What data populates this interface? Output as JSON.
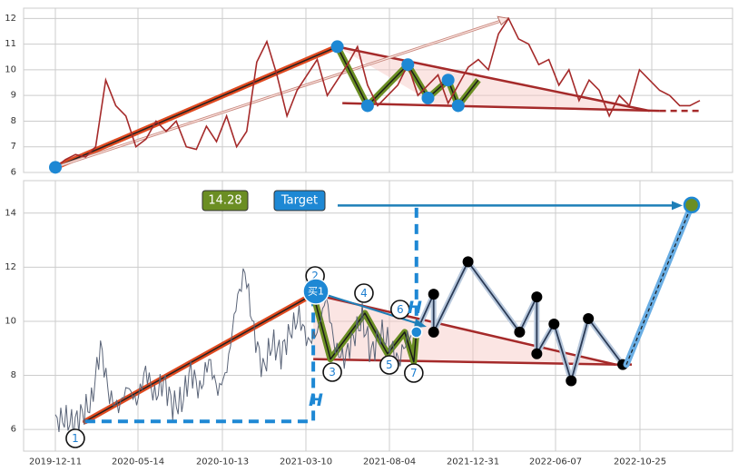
{
  "chart_data": [
    {
      "type": "line",
      "title": "",
      "xlabel": "",
      "ylabel": "",
      "ylim": [
        6,
        12.4
      ],
      "y_ticks": [
        "6",
        "7",
        "8",
        "9",
        "10",
        "11",
        "12"
      ],
      "grid": true,
      "series": [
        {
          "color": "#a52a2a",
          "values": [
            6.2,
            6.5,
            6.7,
            6.6,
            7.0,
            9.6,
            8.6,
            8.2,
            7.0,
            7.3,
            8.0,
            7.6,
            8.0,
            7.0,
            6.9,
            7.8,
            7.2,
            8.2,
            7.0,
            7.6,
            10.3,
            11.1,
            9.8,
            8.2,
            9.2,
            9.8,
            10.4,
            9.0,
            9.6,
            10.2,
            10.9,
            9.4,
            8.6,
            9.0,
            9.4,
            10.2,
            9.0,
            9.4,
            9.8,
            8.7,
            9.4,
            10.1,
            10.4,
            10.0,
            11.4,
            12.0,
            11.2,
            11.0,
            10.2,
            10.4,
            9.4,
            10.0,
            8.8,
            9.6,
            9.2,
            8.2,
            9.0,
            8.6,
            10.0,
            9.6,
            9.2,
            9.0,
            8.6,
            8.6,
            8.8
          ]
        }
      ],
      "markers": [
        {
          "label": "",
          "x": 0,
          "y": 6.2
        },
        {
          "label": "",
          "x": 28,
          "y": 10.9
        },
        {
          "label": "",
          "x": 31,
          "y": 8.6
        },
        {
          "label": "",
          "x": 35,
          "y": 10.2
        },
        {
          "label": "",
          "x": 37,
          "y": 8.9
        },
        {
          "label": "",
          "x": 39,
          "y": 9.6
        },
        {
          "label": "",
          "x": 40,
          "y": 8.6
        }
      ]
    },
    {
      "type": "line",
      "title": "",
      "xlabel": "",
      "ylabel": "",
      "ylim": [
        5.2,
        15.2
      ],
      "y_ticks": [
        "6",
        "8",
        "10",
        "12",
        "14"
      ],
      "x_ticks": [
        "2019-12-11",
        "2020-05-14",
        "2020-10-13",
        "2021-03-10",
        "2021-08-04",
        "2021-12-31",
        "2022-06-07",
        "2022-10-25"
      ],
      "grid": true,
      "series": [
        {
          "color": "#5a6478",
          "values": [
            6.3,
            6.4,
            6.2,
            6.6,
            7.0,
            9.1,
            7.2,
            6.8,
            7.6,
            7.0,
            8.2,
            7.2,
            7.8,
            6.9,
            7.0,
            8.2,
            7.4,
            8.6,
            7.4,
            8.2,
            10.6,
            11.9,
            9.6,
            8.2,
            9.2,
            8.8,
            9.6,
            10.2,
            9.2,
            9.6,
            10.9,
            9.0,
            8.6,
            9.4,
            10.1,
            8.8,
            9.6,
            9.2,
            8.5,
            9.4,
            9.6
          ]
        }
      ],
      "pattern": [
        {
          "x": "2020-01",
          "y": 6.3
        },
        {
          "x": "2021-03",
          "y": 11.0
        },
        {
          "x": "2021-04",
          "y": 8.6
        },
        {
          "x": "2021-06",
          "y": 10.3
        },
        {
          "x": "2021-07",
          "y": 8.8
        },
        {
          "x": "2021-08",
          "y": 9.6
        },
        {
          "x": "2021-08",
          "y": 8.5
        },
        {
          "x": "2021-09",
          "y": 9.6
        }
      ],
      "projection": [
        {
          "x": "2021-09",
          "y": 9.6
        },
        {
          "x": "2021-10",
          "y": 11.0
        },
        {
          "x": "2021-10",
          "y": 9.6
        },
        {
          "x": "2021-12",
          "y": 12.2
        },
        {
          "x": "2022-03",
          "y": 9.6
        },
        {
          "x": "2022-04",
          "y": 10.9
        },
        {
          "x": "2022-04",
          "y": 8.8
        },
        {
          "x": "2022-05",
          "y": 9.9
        },
        {
          "x": "2022-06",
          "y": 7.8
        },
        {
          "x": "2022-07",
          "y": 10.1
        },
        {
          "x": "2022-09",
          "y": 8.4
        }
      ],
      "target_line": [
        {
          "x": "2022-09",
          "y": 8.4
        },
        {
          "x": "2023-02",
          "y": 14.3
        }
      ],
      "circled_labels": [
        "1",
        "2",
        "3",
        "4",
        "5",
        "6",
        "7"
      ],
      "buy_label": "买1",
      "height_label": "H",
      "target_value": "14.28",
      "target_label": "Target"
    }
  ]
}
